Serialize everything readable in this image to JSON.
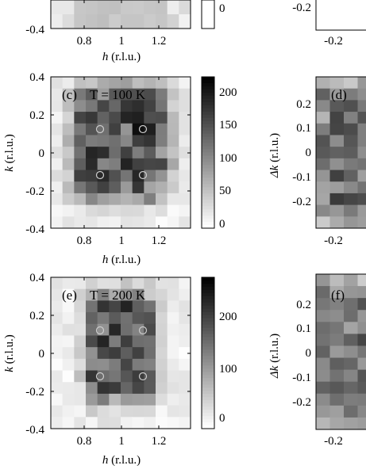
{
  "figure": {
    "panels": [
      {
        "id": "b-partial",
        "label": "",
        "title": "",
        "xlabel_var": "h",
        "xlabel_unit": "(r.l.u.)",
        "x_ticks": [
          "0.8",
          "1",
          "1.2"
        ],
        "y_ticks": [
          "-0.4"
        ],
        "colorbar_ticks": [
          "0"
        ]
      },
      {
        "id": "c",
        "label": "(c)",
        "title": "T = 100 K",
        "xlabel_var": "h",
        "xlabel_unit": "(r.l.u.)",
        "ylabel_var": "k",
        "ylabel_unit": "(r.l.u.)",
        "x_ticks": [
          "0.8",
          "1",
          "1.2"
        ],
        "y_ticks": [
          "0.4",
          "0.2",
          "0",
          "-0.2",
          "-0.4"
        ],
        "colorbar_ticks": [
          "200",
          "150",
          "100",
          "50",
          "0"
        ],
        "colorbar_range": [
          0,
          220
        ]
      },
      {
        "id": "e",
        "label": "(e)",
        "title": "T = 200 K",
        "xlabel_var": "h",
        "xlabel_unit": "(r.l.u.)",
        "ylabel_var": "k",
        "ylabel_unit": "(r.l.u.)",
        "x_ticks": [
          "0.8",
          "1",
          "1.2"
        ],
        "y_ticks": [
          "0.4",
          "0.2",
          "0",
          "-0.2",
          "-0.4"
        ],
        "colorbar_ticks": [
          "200",
          "100",
          "0"
        ],
        "colorbar_range": [
          0,
          280
        ]
      },
      {
        "id": "a-partial-right",
        "label": "",
        "y_ticks": [
          "-0.2"
        ],
        "x_ticks": [
          "-0.2"
        ]
      },
      {
        "id": "d",
        "label": "(d)",
        "ylabel_var": "Δk",
        "ylabel_unit": "(r.l.u.)",
        "y_ticks": [
          "0.2",
          "0.1",
          "0",
          "-0.1",
          "-0.2"
        ],
        "x_ticks": [
          "-0.2"
        ]
      },
      {
        "id": "f",
        "label": "(f)",
        "ylabel_var": "Δk",
        "ylabel_unit": "(r.l.u.)",
        "y_ticks": [
          "0.2",
          "0.1",
          "0",
          "-0.1",
          "-0.2"
        ],
        "x_ticks": [
          "-0.2"
        ]
      }
    ]
  }
}
